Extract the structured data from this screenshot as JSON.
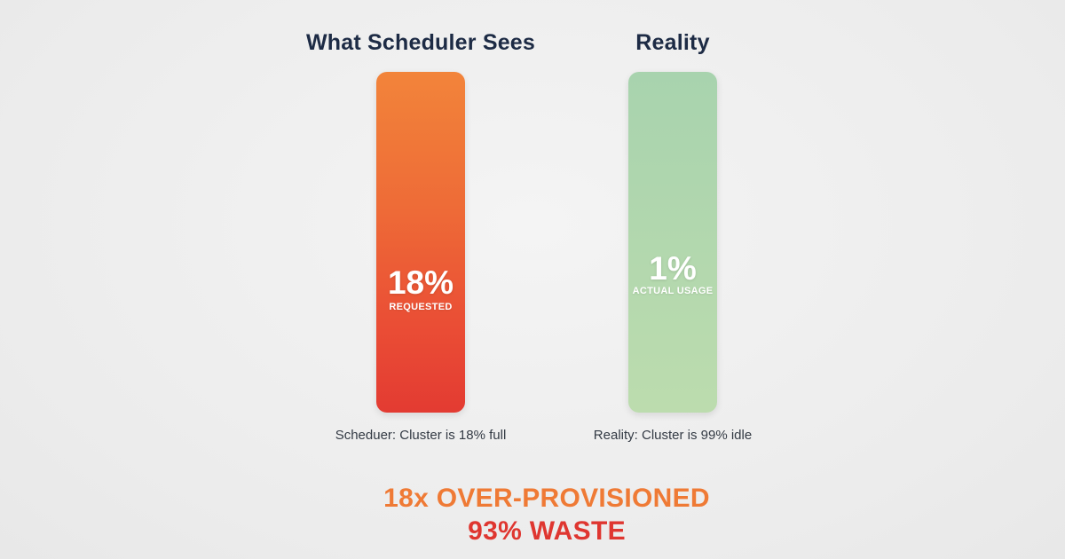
{
  "left": {
    "title": "What Scheduler Sees",
    "value": "18%",
    "caption": "REQUESTED",
    "note": "Scheduer: Cluster is 18% full",
    "bar_color_top": "#f2843a",
    "bar_color_bottom": "#e33b32"
  },
  "right": {
    "title": "Reality",
    "value": "1%",
    "caption": "ACTUAL USAGE",
    "note": "Reality: Cluster is 99% idle",
    "bar_color_top": "#a8d3ae",
    "bar_color_bottom": "#bcdcae"
  },
  "summary": {
    "line1": "18x OVER-PROVISIONED",
    "line2": "93% WASTE",
    "line1_color": "#ef7a35",
    "line2_color": "#df3630"
  }
}
